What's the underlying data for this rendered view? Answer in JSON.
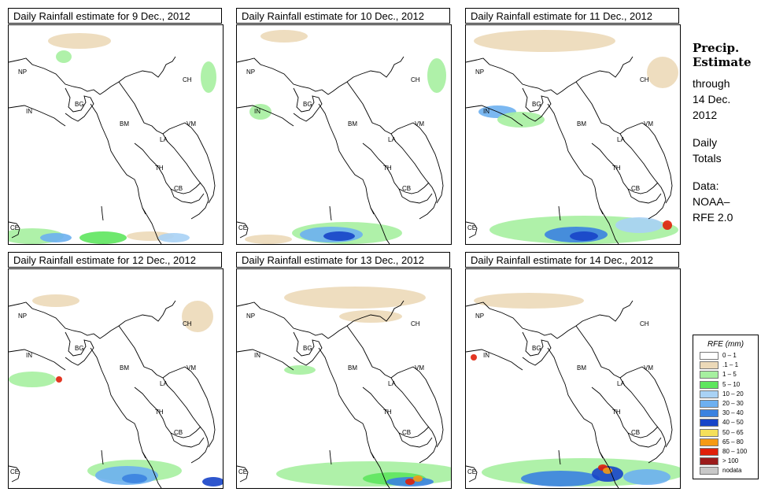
{
  "panels": [
    {
      "title": "Daily Rainfall estimate for  9 Dec., 2012"
    },
    {
      "title": "Daily Rainfall estimate for  10 Dec., 2012"
    },
    {
      "title": "Daily Rainfall estimate for  11 Dec., 2012"
    },
    {
      "title": "Daily Rainfall estimate for  12 Dec., 2012"
    },
    {
      "title": "Daily Rainfall estimate for  13 Dec., 2012"
    },
    {
      "title": "Daily Rainfall estimate for  14 Dec., 2012"
    }
  ],
  "country_labels": [
    "NP",
    "CH",
    "IN",
    "BG",
    "BM",
    "VM",
    "LA",
    "TH",
    "CB",
    "CE"
  ],
  "side": {
    "heading1": "Precip.",
    "heading2": "Estimate",
    "line1": "through",
    "line2": "14 Dec.",
    "line3": "2012",
    "line4": "Daily",
    "line5": "Totals",
    "line6": "Data:",
    "line7": "NOAA–",
    "line8": "RFE 2.0"
  },
  "legend": {
    "title": "RFE (mm)",
    "items": [
      {
        "label": "0 – 1",
        "color": "#ffffff"
      },
      {
        "label": ".1 – 1",
        "color": "#ecd9b8"
      },
      {
        "label": "1 – 5",
        "color": "#a6f0a0"
      },
      {
        "label": "5 – 10",
        "color": "#5ee65e"
      },
      {
        "label": "10 – 20",
        "color": "#a9d2f5"
      },
      {
        "label": "20 – 30",
        "color": "#6db0f0"
      },
      {
        "label": "30 – 40",
        "color": "#3b82e0"
      },
      {
        "label": "40 – 50",
        "color": "#1744c8"
      },
      {
        "label": "50 – 65",
        "color": "#f5e05a"
      },
      {
        "label": "65 – 80",
        "color": "#f59a14"
      },
      {
        "label": "80 – 100",
        "color": "#e0200a"
      },
      {
        "label": "> 100",
        "color": "#9b1b1b"
      },
      {
        "label": "nodata",
        "color": "#c8c8c8"
      }
    ]
  }
}
